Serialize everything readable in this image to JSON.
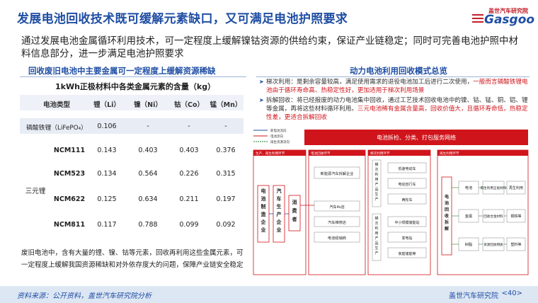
{
  "header": {
    "title": "发展电池回收技术既可缓解元素缺口，又可满足电池护照要求",
    "logo_cn": "盖世汽车研究院",
    "logo_en": "Gasgoo"
  },
  "intro": "通过发展电池金属循环利用技术，可一定程度上缓解镍钴资源的供给约束，保证产业链稳定；同时可完善电池护照中材料信息部分，进一步满足电池护照要求",
  "left": {
    "heading": "回收废旧电池中主要金属可一定程度上缓解资源稀缺",
    "table_title": "1kWh正极材料中各类金属元素的含量（kg）",
    "columns": [
      "电池类型",
      "锂（Li）",
      "镍（Ni）",
      "钴（Co）",
      "锰（Mn）"
    ],
    "lfp": {
      "type": "磷酸铁锂（LiFePO₄）",
      "values": [
        "0.106",
        "-",
        "-",
        "-"
      ]
    },
    "group_label": "三元锂",
    "ncm_rows": [
      {
        "name": "NCM111",
        "values": [
          "0.143",
          "0.403",
          "0.403",
          "0.376"
        ]
      },
      {
        "name": "NCM523",
        "values": [
          "0.134",
          "0.564",
          "0.226",
          "0.315"
        ]
      },
      {
        "name": "NCM622",
        "values": [
          "0.125",
          "0.634",
          "0.211",
          "0.197"
        ]
      },
      {
        "name": "NCM811",
        "values": [
          "0.117",
          "0.788",
          "0.099",
          "0.092"
        ]
      }
    ],
    "footnote": "废旧电池中，含有大量的锂、镍、钴等元素，回收再利用这些金属元素，可一定程度上缓解我国资源稀缺和对外依存度大的问题，保障产业链安全稳定"
  },
  "right": {
    "heading": "动力电池利用回收模式总览",
    "bullet1": {
      "normal": "梯次利用：是剩余容量较高，满足使用需求的退役电池加工后进行二次使用，",
      "red": "一般而言磷酸铁锂电池由于循环寿命高、热稳定性好，更加适用于梯次利用场景"
    },
    "bullet2": {
      "normal": "拆解回收：将已经报废的动力电池集中回收，通过工艺技术回收电池中的镍、钴、锰、铜、铝、锂等金属，再将这些材料循环利用。",
      "red": "三元电池稀有金属含量高，回收价值大，且循环寿命低，热稳定性差，更适合拆解回收"
    }
  },
  "diagram": {
    "legend": [
      "新电池流向",
      "电池流向",
      "再生资源流向"
    ],
    "top_bar": "电池拆检、分类、打包服务网络",
    "sections": [
      "生产、再生利用环节",
      "电池回收环节",
      "梯次利用环节",
      "再生利用环节"
    ],
    "producer": "电池制造企业",
    "automaker": "汽车生产企业",
    "consumer": "消费者",
    "recycle_boxes": [
      "新能源汽车拆解企业",
      "汽车4s店",
      "汽车维修店",
      "电池经销商"
    ],
    "cascade_top_label": "梯次利用产品生产",
    "cascade_top": [
      "低速电动车",
      "电动自行车",
      "两轮车"
    ],
    "cascade_bottom_label": "梯次利用产品生产",
    "cascade_bottom": [
      "中小规模储能站",
      "变电站",
      "家庭储能等"
    ],
    "regen_label": "电池回收拆解",
    "regen_left": [
      "电池",
      "金属",
      "树脂"
    ],
    "regen_right": [
      "阳生利用正极材料",
      "回收合金材料",
      "资源回收物质"
    ],
    "regen_end": [
      "再生利用",
      "钢铁等",
      "塑料等"
    ]
  },
  "footer": {
    "source": "资料来源：公开资料，盖世汽车研究院分析",
    "org": "盖世汽车研究院",
    "page": "<40>"
  },
  "colors": {
    "accent": "#1f4ea3",
    "red": "#d0141b",
    "footer_bg": "#dde7f4"
  }
}
